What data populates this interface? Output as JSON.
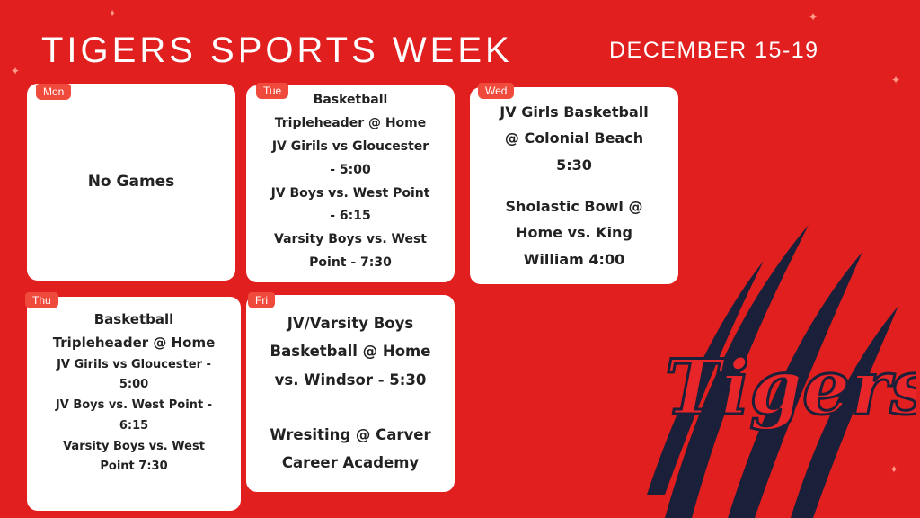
{
  "header": {
    "title": "TIGERS SPORTS WEEK",
    "date": "DECEMBER 15-19"
  },
  "days": [
    {
      "label": "Mon",
      "lines": [
        "No Games"
      ]
    },
    {
      "label": "Tue",
      "lines": [
        "Basketball",
        "Tripleheader @ Home",
        "JV Girils vs Gloucester",
        "- 5:00",
        "JV Boys vs. West Point",
        "- 6:15",
        "Varsity Boys vs. West",
        "Point - 7:30"
      ]
    },
    {
      "label": "Wed",
      "lines": [
        "JV Girls Basketball",
        "@ Colonial Beach",
        "5:30",
        "Sholastic Bowl @",
        "Home vs. King",
        "William 4:00"
      ]
    },
    {
      "label": "Thu",
      "lines": [
        "Basketball",
        "Tripleheader @ Home",
        "JV Girils vs Gloucester -",
        "5:00",
        "JV Boys vs. West Point -",
        "6:15",
        "Varsity Boys vs. West",
        "Point 7:30"
      ]
    },
    {
      "label": "Fri",
      "lines": [
        "JV/Varsity Boys",
        "Basketball @ Home",
        "vs. Windsor - 5:30",
        "Wresiting @ Carver",
        "Career Academy"
      ]
    }
  ],
  "logo": {
    "text": "Tigers",
    "colors": {
      "fill": "#e8262a",
      "outline": "#1a1f3a",
      "background": "#e11f1f"
    }
  }
}
